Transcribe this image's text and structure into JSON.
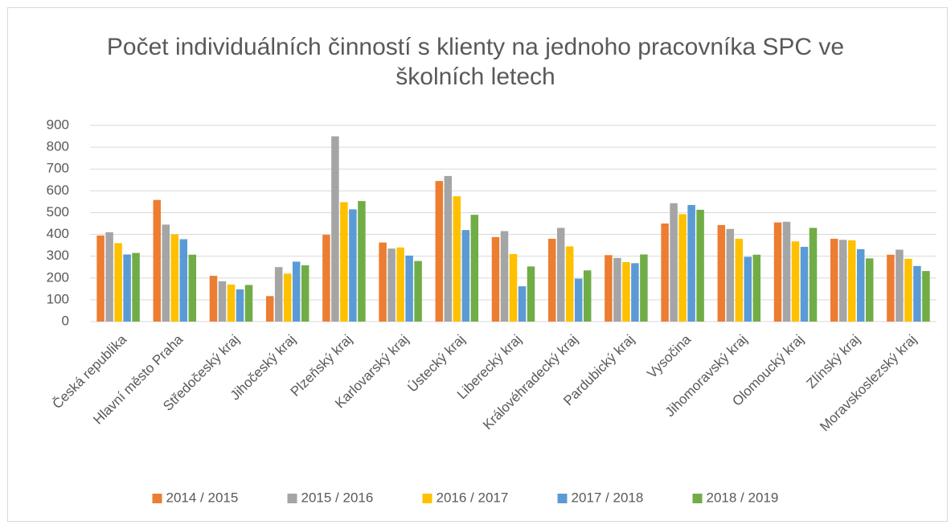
{
  "chart_data": {
    "type": "bar",
    "title": "Počet individuálních činností s klienty na jednoho pracovníka SPC ve školních letech",
    "categories": [
      "Česká republika",
      "Hlavní město Praha",
      "Středočeský kraj",
      "Jihočeský kraj",
      "Plzeňský kraj",
      "Karlovarský kraj",
      "Ústecký kraj",
      "Liberecký kraj",
      "Královéhradecký kraj",
      "Pardubický kraj",
      "Vysočina",
      "Jihomoravský kraj",
      "Olomoucký kraj",
      "Zlínský kraj",
      "Moravskoslezský kraj"
    ],
    "series": [
      {
        "name": "2014 / 2015",
        "color": "#ed7d31",
        "values": [
          395,
          558,
          210,
          117,
          398,
          363,
          645,
          388,
          380,
          305,
          450,
          443,
          455,
          380,
          307
        ]
      },
      {
        "name": "2015 / 2016",
        "color": "#a5a5a5",
        "values": [
          410,
          445,
          185,
          250,
          850,
          335,
          668,
          415,
          430,
          292,
          543,
          425,
          458,
          375,
          330
        ]
      },
      {
        "name": "2016 / 2017",
        "color": "#ffc000",
        "values": [
          360,
          400,
          170,
          220,
          548,
          340,
          575,
          310,
          345,
          273,
          493,
          380,
          368,
          373,
          288
        ]
      },
      {
        "name": "2017 / 2018",
        "color": "#5b9bd5",
        "values": [
          308,
          378,
          148,
          275,
          515,
          303,
          420,
          162,
          197,
          268,
          535,
          297,
          343,
          332,
          255
        ]
      },
      {
        "name": "2018 / 2019",
        "color": "#70ad47",
        "values": [
          315,
          307,
          168,
          258,
          553,
          278,
          490,
          253,
          235,
          308,
          513,
          307,
          430,
          290,
          232
        ]
      }
    ],
    "ylim": [
      0,
      900
    ],
    "yticks": [
      0,
      100,
      200,
      300,
      400,
      500,
      600,
      700,
      800,
      900
    ],
    "grid": true,
    "legend": "bottom"
  }
}
